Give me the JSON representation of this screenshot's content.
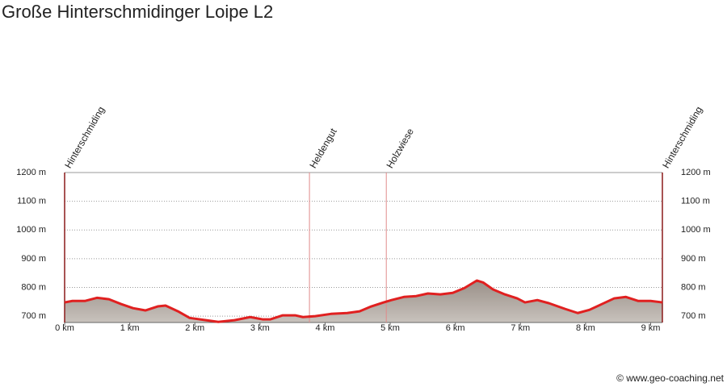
{
  "chart_data": {
    "type": "area",
    "title": "Große Hinterschmidinger Loipe L2",
    "x": [
      0,
      0.12,
      0.31,
      0.5,
      0.68,
      0.87,
      1.05,
      1.24,
      1.43,
      1.55,
      1.74,
      1.92,
      2.17,
      2.36,
      2.61,
      2.85,
      3.04,
      3.16,
      3.35,
      3.54,
      3.66,
      3.85,
      4.09,
      4.34,
      4.53,
      4.71,
      4.9,
      5.02,
      5.21,
      5.4,
      5.58,
      5.77,
      5.96,
      6.14,
      6.33,
      6.43,
      6.58,
      6.76,
      6.95,
      7.07,
      7.26,
      7.44,
      7.69,
      7.88,
      8.06,
      8.25,
      8.44,
      8.62,
      8.81,
      9.0,
      9.18
    ],
    "values": [
      748,
      753,
      753,
      764,
      759,
      742,
      728,
      720,
      734,
      737,
      717,
      694,
      686,
      680,
      686,
      697,
      689,
      689,
      703,
      703,
      697,
      700,
      708,
      711,
      717,
      734,
      748,
      756,
      767,
      770,
      779,
      776,
      781,
      798,
      824,
      817,
      793,
      776,
      762,
      748,
      756,
      745,
      725,
      711,
      722,
      742,
      762,
      767,
      753,
      753,
      748
    ],
    "color": "#e02020",
    "fill": "#9a9088",
    "xlim": [
      0,
      9.18
    ],
    "ylim": [
      678,
      1200
    ],
    "xticks": [
      {
        "value": 0,
        "label": "0 km"
      },
      {
        "value": 1,
        "label": "1 km"
      },
      {
        "value": 2,
        "label": "2 km"
      },
      {
        "value": 3,
        "label": "3 km"
      },
      {
        "value": 4,
        "label": "4 km"
      },
      {
        "value": 5,
        "label": "5 km"
      },
      {
        "value": 6,
        "label": "6 km"
      },
      {
        "value": 7,
        "label": "7 km"
      },
      {
        "value": 8,
        "label": "8 km"
      },
      {
        "value": 9,
        "label": "9 km"
      }
    ],
    "yticks": [
      {
        "value": 700,
        "label": "700 m"
      },
      {
        "value": 800,
        "label": "800 m"
      },
      {
        "value": 900,
        "label": "900 m"
      },
      {
        "value": 1000,
        "label": "1000 m"
      },
      {
        "value": 1100,
        "label": "1100 m"
      },
      {
        "value": 1200,
        "label": "1200 m"
      }
    ],
    "grid": true,
    "markers": [
      {
        "label": "Hinterschmiding",
        "x": 0
      },
      {
        "label": "Heldengut",
        "x": 3.76
      },
      {
        "label": "Holzwiese",
        "x": 4.94
      },
      {
        "label": "Hinterschmiding",
        "x": 9.18
      }
    ],
    "copyright": "© www.geo-coaching.net"
  }
}
